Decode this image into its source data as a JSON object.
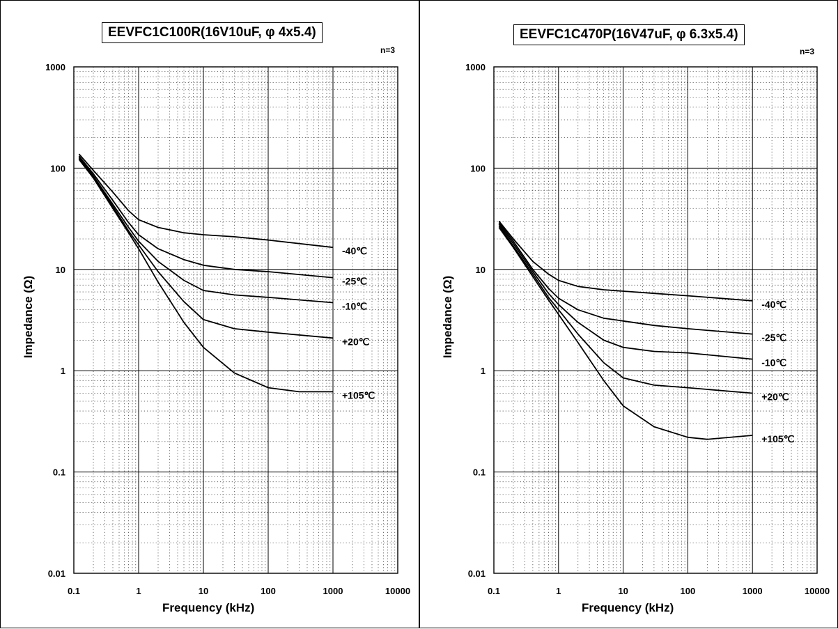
{
  "chart_data": [
    {
      "type": "line",
      "title": "EEVFC1C100R(16V10uF, φ 4x5.4)",
      "note": "n=3",
      "xlabel": "Frequency (kHz)",
      "ylabel": "Impedance (Ω)",
      "x_scale": "log",
      "y_scale": "log",
      "xlim": [
        0.1,
        10000
      ],
      "ylim": [
        0.01,
        1000
      ],
      "x_ticks": [
        "0.1",
        "1",
        "10",
        "100",
        "1000",
        "10000"
      ],
      "y_ticks": [
        "0.01",
        "0.1",
        "1",
        "10",
        "100",
        "1000"
      ],
      "grid": true,
      "series": [
        {
          "name": "-40℃",
          "x": [
            0.12,
            0.2,
            0.4,
            0.7,
            1,
            2,
            5,
            10,
            30,
            100,
            1000
          ],
          "y": [
            138,
            95,
            58,
            38,
            31,
            26,
            23,
            22,
            21,
            19.5,
            16.5
          ]
        },
        {
          "name": "-25℃",
          "x": [
            0.12,
            0.2,
            0.4,
            0.7,
            1,
            2,
            5,
            10,
            30,
            100,
            1000
          ],
          "y": [
            132,
            88,
            48,
            29,
            22,
            16,
            12.5,
            11,
            10,
            9.5,
            8.3
          ]
        },
        {
          "name": "-10℃",
          "x": [
            0.12,
            0.2,
            0.4,
            0.7,
            1,
            2,
            5,
            10,
            30,
            100,
            1000
          ],
          "y": [
            128,
            84,
            44,
            26,
            19,
            12,
            7.8,
            6.2,
            5.6,
            5.3,
            4.7
          ]
        },
        {
          "name": "+20℃",
          "x": [
            0.12,
            0.2,
            0.4,
            0.7,
            1,
            2,
            5,
            10,
            30,
            100,
            1000
          ],
          "y": [
            125,
            82,
            42,
            24,
            17.5,
            9.5,
            4.8,
            3.2,
            2.6,
            2.4,
            2.1
          ]
        },
        {
          "name": "+105℃",
          "x": [
            0.12,
            0.2,
            0.4,
            0.7,
            1,
            2,
            5,
            10,
            30,
            100,
            300,
            1000
          ],
          "y": [
            122,
            80,
            40,
            23,
            16,
            7.5,
            3,
            1.7,
            0.95,
            0.68,
            0.62,
            0.62
          ]
        }
      ]
    },
    {
      "type": "line",
      "title": "EEVFC1C470P(16V47uF, φ 6.3x5.4)",
      "note": "n=3",
      "xlabel": "Frequency (kHz)",
      "ylabel": "Impedance (Ω)",
      "x_scale": "log",
      "y_scale": "log",
      "xlim": [
        0.1,
        10000
      ],
      "ylim": [
        0.01,
        1000
      ],
      "x_ticks": [
        "0.1",
        "1",
        "10",
        "100",
        "1000",
        "10000"
      ],
      "y_ticks": [
        "0.01",
        "0.1",
        "1",
        "10",
        "100",
        "1000"
      ],
      "grid": true,
      "series": [
        {
          "name": "-40℃",
          "x": [
            0.12,
            0.2,
            0.4,
            0.7,
            1,
            2,
            5,
            10,
            30,
            100,
            1000
          ],
          "y": [
            30,
            20,
            12,
            9,
            7.8,
            6.8,
            6.3,
            6.1,
            5.8,
            5.5,
            4.9
          ]
        },
        {
          "name": "-25℃",
          "x": [
            0.12,
            0.2,
            0.4,
            0.7,
            1,
            2,
            5,
            10,
            30,
            100,
            1000
          ],
          "y": [
            29,
            19,
            10,
            6.5,
            5.2,
            4,
            3.3,
            3.1,
            2.8,
            2.6,
            2.3
          ]
        },
        {
          "name": "-10℃",
          "x": [
            0.12,
            0.2,
            0.4,
            0.7,
            1,
            2,
            5,
            10,
            30,
            100,
            1000
          ],
          "y": [
            28,
            18,
            9.5,
            5.8,
            4.5,
            3,
            2,
            1.7,
            1.55,
            1.5,
            1.3
          ]
        },
        {
          "name": "+20℃",
          "x": [
            0.12,
            0.2,
            0.4,
            0.7,
            1,
            2,
            5,
            10,
            30,
            100,
            1000
          ],
          "y": [
            27,
            17,
            9,
            5.3,
            4,
            2.3,
            1.2,
            0.85,
            0.72,
            0.68,
            0.6
          ]
        },
        {
          "name": "+105℃",
          "x": [
            0.12,
            0.2,
            0.4,
            0.7,
            1,
            2,
            5,
            10,
            30,
            100,
            200,
            1000
          ],
          "y": [
            26,
            16.5,
            8.5,
            5,
            3.6,
            1.9,
            0.8,
            0.45,
            0.28,
            0.22,
            0.21,
            0.23
          ]
        }
      ]
    }
  ]
}
